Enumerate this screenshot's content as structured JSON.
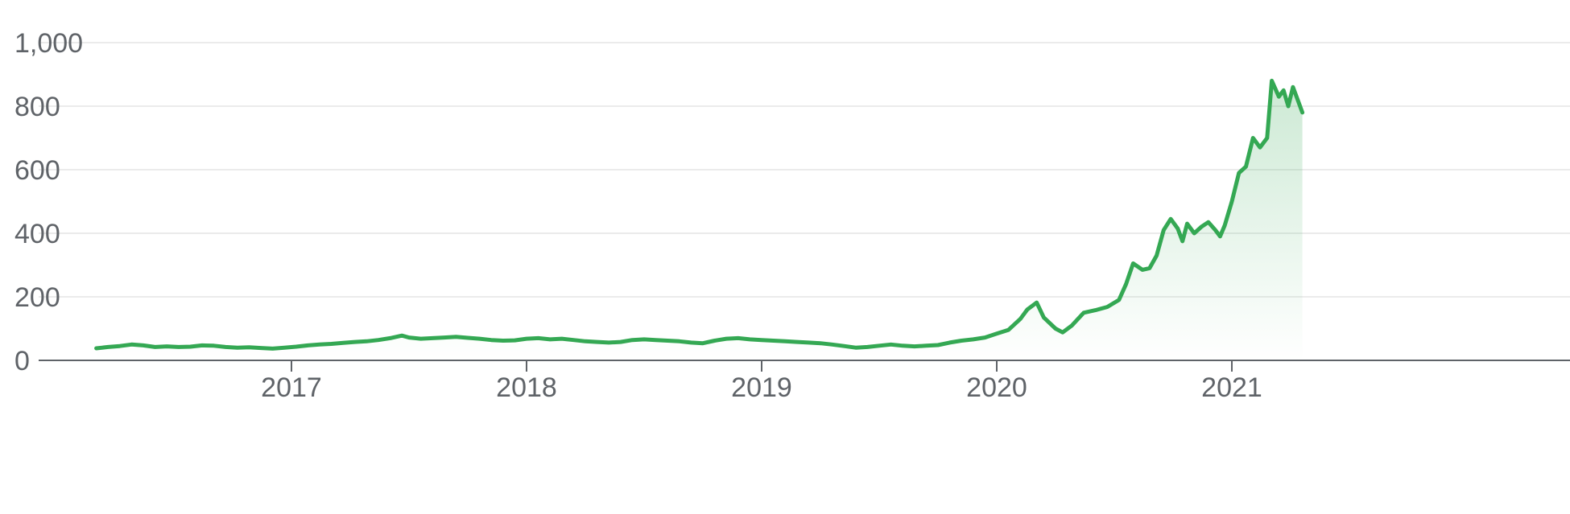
{
  "colors": {
    "line": "#34a853",
    "area_top": "#34a853",
    "grid": "#ebebeb",
    "axis": "#5f6368",
    "text": "#5f6368"
  },
  "chart_data": {
    "type": "area",
    "title": "",
    "xlabel": "",
    "ylabel": "",
    "ylim": [
      0,
      1000
    ],
    "xlim": [
      2016.0,
      2021.3
    ],
    "grid": true,
    "y_ticks": [
      {
        "value": 0,
        "label": "0"
      },
      {
        "value": 200,
        "label": "200"
      },
      {
        "value": 400,
        "label": "400"
      },
      {
        "value": 600,
        "label": "600"
      },
      {
        "value": 800,
        "label": "800"
      },
      {
        "value": 1000,
        "label": "1,000"
      }
    ],
    "x_ticks": [
      {
        "value": 2017,
        "label": "2017"
      },
      {
        "value": 2018,
        "label": "2018"
      },
      {
        "value": 2019,
        "label": "2019"
      },
      {
        "value": 2020,
        "label": "2020"
      },
      {
        "value": 2021,
        "label": "2021"
      }
    ],
    "series": [
      {
        "points": [
          [
            2016.17,
            38
          ],
          [
            2016.22,
            42
          ],
          [
            2016.27,
            45
          ],
          [
            2016.32,
            50
          ],
          [
            2016.37,
            47
          ],
          [
            2016.42,
            42
          ],
          [
            2016.47,
            44
          ],
          [
            2016.52,
            42
          ],
          [
            2016.57,
            43
          ],
          [
            2016.62,
            47
          ],
          [
            2016.67,
            46
          ],
          [
            2016.72,
            42
          ],
          [
            2016.77,
            40
          ],
          [
            2016.82,
            41
          ],
          [
            2016.87,
            39
          ],
          [
            2016.92,
            37
          ],
          [
            2016.97,
            40
          ],
          [
            2017.02,
            43
          ],
          [
            2017.07,
            47
          ],
          [
            2017.12,
            50
          ],
          [
            2017.17,
            52
          ],
          [
            2017.22,
            55
          ],
          [
            2017.27,
            58
          ],
          [
            2017.32,
            60
          ],
          [
            2017.37,
            64
          ],
          [
            2017.42,
            70
          ],
          [
            2017.47,
            78
          ],
          [
            2017.5,
            72
          ],
          [
            2017.55,
            68
          ],
          [
            2017.6,
            70
          ],
          [
            2017.65,
            72
          ],
          [
            2017.7,
            74
          ],
          [
            2017.75,
            71
          ],
          [
            2017.8,
            68
          ],
          [
            2017.85,
            64
          ],
          [
            2017.9,
            62
          ],
          [
            2017.95,
            63
          ],
          [
            2018.0,
            68
          ],
          [
            2018.05,
            70
          ],
          [
            2018.1,
            66
          ],
          [
            2018.15,
            68
          ],
          [
            2018.2,
            64
          ],
          [
            2018.25,
            60
          ],
          [
            2018.3,
            58
          ],
          [
            2018.35,
            56
          ],
          [
            2018.4,
            58
          ],
          [
            2018.45,
            64
          ],
          [
            2018.5,
            66
          ],
          [
            2018.55,
            64
          ],
          [
            2018.6,
            62
          ],
          [
            2018.65,
            60
          ],
          [
            2018.7,
            56
          ],
          [
            2018.75,
            54
          ],
          [
            2018.8,
            62
          ],
          [
            2018.85,
            68
          ],
          [
            2018.9,
            70
          ],
          [
            2018.95,
            66
          ],
          [
            2019.0,
            64
          ],
          [
            2019.05,
            62
          ],
          [
            2019.1,
            60
          ],
          [
            2019.15,
            58
          ],
          [
            2019.2,
            56
          ],
          [
            2019.25,
            54
          ],
          [
            2019.3,
            50
          ],
          [
            2019.35,
            45
          ],
          [
            2019.4,
            40
          ],
          [
            2019.45,
            42
          ],
          [
            2019.5,
            46
          ],
          [
            2019.55,
            50
          ],
          [
            2019.6,
            46
          ],
          [
            2019.65,
            44
          ],
          [
            2019.7,
            46
          ],
          [
            2019.75,
            48
          ],
          [
            2019.8,
            56
          ],
          [
            2019.85,
            62
          ],
          [
            2019.9,
            66
          ],
          [
            2019.95,
            72
          ],
          [
            2020.0,
            84
          ],
          [
            2020.05,
            96
          ],
          [
            2020.1,
            130
          ],
          [
            2020.13,
            160
          ],
          [
            2020.17,
            182
          ],
          [
            2020.2,
            135
          ],
          [
            2020.25,
            100
          ],
          [
            2020.28,
            88
          ],
          [
            2020.32,
            110
          ],
          [
            2020.37,
            150
          ],
          [
            2020.42,
            158
          ],
          [
            2020.47,
            168
          ],
          [
            2020.52,
            190
          ],
          [
            2020.55,
            240
          ],
          [
            2020.58,
            305
          ],
          [
            2020.62,
            285
          ],
          [
            2020.65,
            290
          ],
          [
            2020.68,
            330
          ],
          [
            2020.71,
            410
          ],
          [
            2020.74,
            445
          ],
          [
            2020.77,
            415
          ],
          [
            2020.79,
            375
          ],
          [
            2020.81,
            430
          ],
          [
            2020.84,
            400
          ],
          [
            2020.87,
            420
          ],
          [
            2020.9,
            435
          ],
          [
            2020.93,
            410
          ],
          [
            2020.95,
            390
          ],
          [
            2020.97,
            425
          ],
          [
            2021.0,
            500
          ],
          [
            2021.03,
            590
          ],
          [
            2021.06,
            610
          ],
          [
            2021.09,
            700
          ],
          [
            2021.12,
            670
          ],
          [
            2021.15,
            700
          ],
          [
            2021.17,
            880
          ],
          [
            2021.2,
            830
          ],
          [
            2021.22,
            850
          ],
          [
            2021.24,
            800
          ],
          [
            2021.26,
            860
          ],
          [
            2021.28,
            820
          ],
          [
            2021.3,
            780
          ]
        ]
      }
    ]
  }
}
